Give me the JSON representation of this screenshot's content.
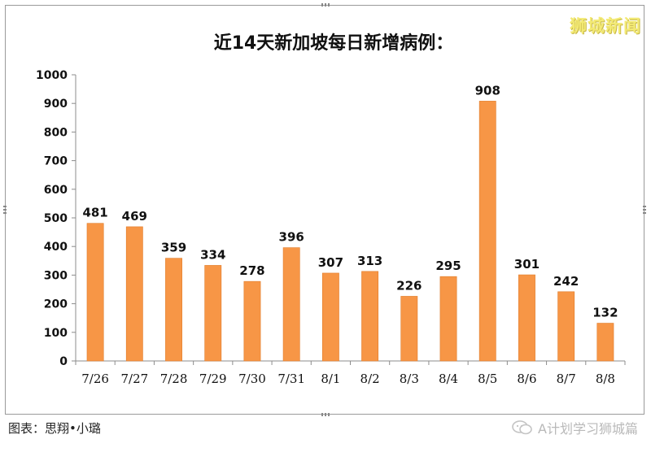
{
  "brand_text": "狮城新闻",
  "credit_text": "图表：思翔•小璐",
  "watermark_text": "A计划学习狮城篇",
  "watermark_icon": "wechat-icon",
  "colors": {
    "bar": "#F79646",
    "bar_edge": "#E07C2A",
    "axis": "#8C8C8C",
    "grid": "#D9D9D9"
  },
  "chart_data": {
    "type": "bar",
    "title": "近14天新加坡每日新增病例：",
    "categories": [
      "7/26",
      "7/27",
      "7/28",
      "7/29",
      "7/30",
      "7/31",
      "8/1",
      "8/2",
      "8/3",
      "8/4",
      "8/5",
      "8/6",
      "8/7",
      "8/8"
    ],
    "values": [
      481,
      469,
      359,
      334,
      278,
      396,
      307,
      313,
      226,
      295,
      908,
      301,
      242,
      132
    ],
    "ylim": [
      0,
      1000
    ],
    "yticks": [
      0,
      100,
      200,
      300,
      400,
      500,
      600,
      700,
      800,
      900,
      1000
    ],
    "grid": false,
    "legend": "none",
    "data_labels": true
  }
}
